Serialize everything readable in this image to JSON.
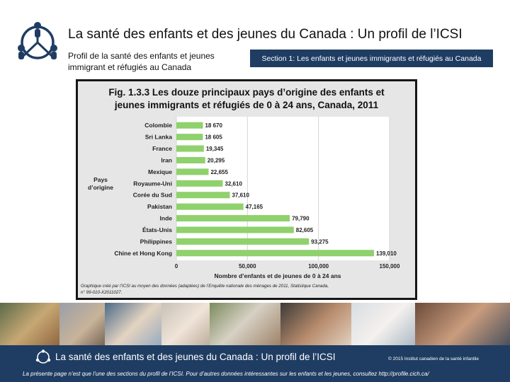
{
  "header": {
    "title": "La santé des enfants et des jeunes du Canada : Un profil de l’ICSI",
    "subtitle": "Profil de la santé des enfants et jeunes immigrant et réfugiés au Canada",
    "section_badge": "Section 1: Les enfants et jeunes immigrants et réfugiés au Canada"
  },
  "chart_data": {
    "type": "bar",
    "orientation": "horizontal",
    "title_line1": "Fig. 1.3.3 Les douze principaux pays d’origine des enfants et",
    "title_line2": "jeunes immigrants et réfugiés de 0 à 24 ans, Canada, 2011",
    "ylabel_line1": "Pays",
    "ylabel_line2": "d’origine",
    "xlabel": "Nombre d’enfants et de jeunes de 0 à 24 ans",
    "categories": [
      "Colombie",
      "Sri Lanka",
      "France",
      "Iran",
      "Mexique",
      "Royaume-Uni",
      "Corée du Sud",
      "Pakistan",
      "Inde",
      "États-Unis",
      "Philippines",
      "Chine et Hong Kong"
    ],
    "values": [
      18670,
      18605,
      19345,
      20295,
      22655,
      32610,
      37610,
      47165,
      79790,
      82605,
      93275,
      139010
    ],
    "value_labels": [
      "18 670",
      "18 605",
      "19,345",
      "20,295",
      "22,655",
      "32,610",
      "37,610",
      "47,165",
      "79,790",
      "82,605",
      "93,275",
      "139,010"
    ],
    "xlim": [
      0,
      150000
    ],
    "xticks": [
      0,
      50000,
      100000,
      150000
    ],
    "xtick_labels": [
      "0",
      "50,000",
      "100,000",
      "150,000"
    ],
    "bar_color": "#8fd16c",
    "source_line1": "Graphique créé par l’ICSI au moyen des données (adaptées) de l’Enquête nationale des ménages de 2011, Statistique Canada,",
    "source_line2": "n° 99-010-X2011027."
  },
  "footer": {
    "title": "La santé des enfants et des jeunes du Canada : Un profil de l’ICSI",
    "copyright": "© 2015 Institut canadien de la santé infantile",
    "note": "La présente page n’est que l’une des sections du profil de l’ICSI. Pour d’autres données intéressantes sur les enfants et les jeunes, consultez http://profile.cich.ca/"
  },
  "colors": {
    "navy": "#1f3d63",
    "bar": "#8fd16c"
  }
}
